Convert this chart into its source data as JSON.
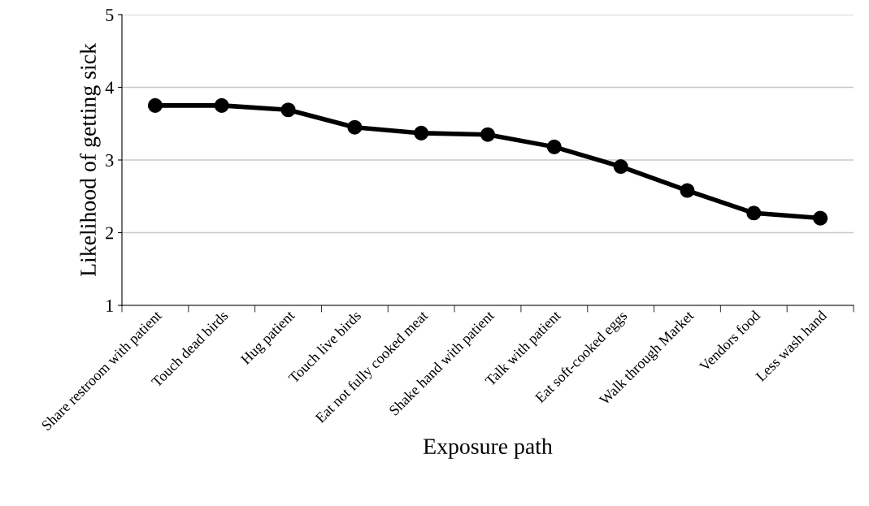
{
  "chart_data": {
    "type": "line",
    "xlabel": "Exposure path",
    "ylabel": "Likelihood of getting sick",
    "categories": [
      "Share restroom with patient",
      "Touch dead birds",
      "Hug patient",
      "Touch live birds",
      "Eat not fully cooked meat",
      "Shake hand with patient",
      "Talk with patient",
      "Eat soft-cooked eggs",
      "Walk through Market",
      "Vendors food",
      "Less wash hand"
    ],
    "series": [
      {
        "color": "#000000",
        "values": [
          3.75,
          3.75,
          3.69,
          3.45,
          3.37,
          3.35,
          3.18,
          2.91,
          2.58,
          2.27,
          2.2
        ]
      }
    ],
    "ylim": [
      1,
      5
    ],
    "yticks": [
      1,
      2,
      3,
      4,
      5
    ],
    "grid": "y",
    "marker": "circle",
    "line_style": "solid"
  }
}
